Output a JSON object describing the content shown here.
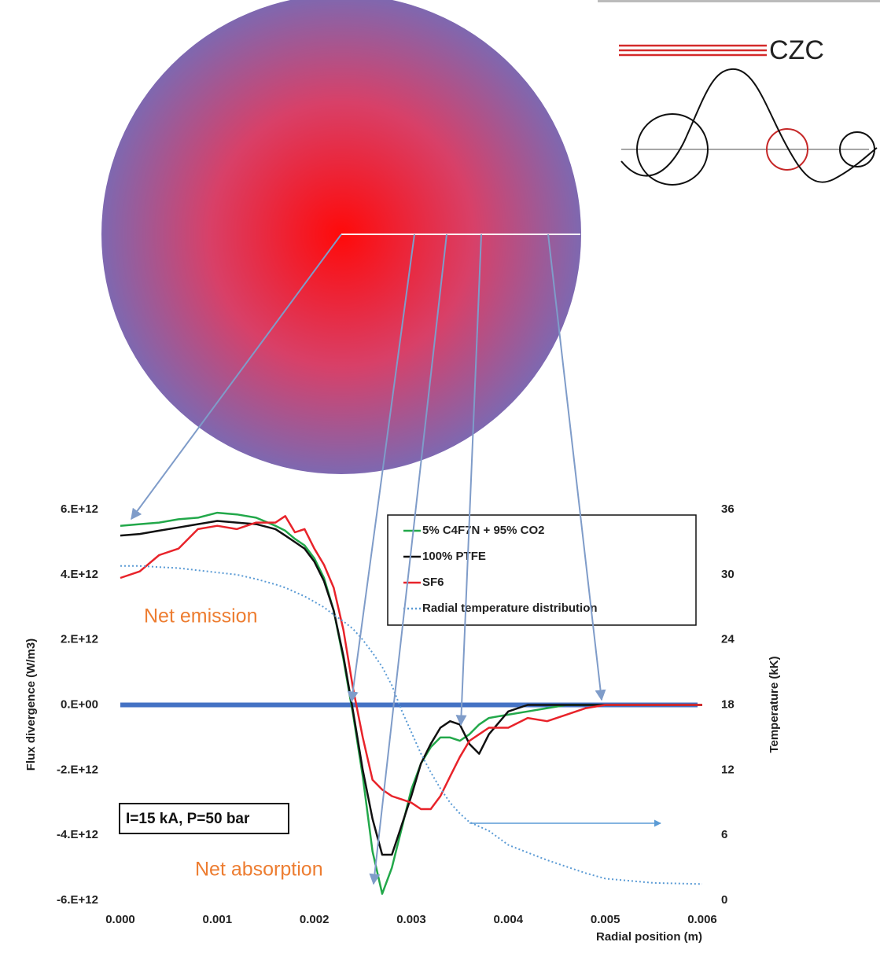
{
  "chart_data": {
    "type": "line",
    "x": [
      0,
      0.0002,
      0.0004,
      0.0006,
      0.0008,
      0.001,
      0.0012,
      0.0014,
      0.0016,
      0.0017,
      0.0018,
      0.0019,
      0.002,
      0.0021,
      0.0022,
      0.0023,
      0.0024,
      0.0025,
      0.0026,
      0.0027,
      0.0028,
      0.0029,
      0.003,
      0.0031,
      0.0032,
      0.0033,
      0.0034,
      0.0035,
      0.0036,
      0.0037,
      0.0038,
      0.004,
      0.0042,
      0.0044,
      0.0046,
      0.0048,
      0.005,
      0.0055,
      0.006
    ],
    "series": [
      {
        "name": "5% C4F7N + 95% CO2",
        "color": "#22a84a",
        "values": [
          5500000000000.0,
          5550000000000.0,
          5600000000000.0,
          5700000000000.0,
          5750000000000.0,
          5900000000000.0,
          5850000000000.0,
          5750000000000.0,
          5500000000000.0,
          5350000000000.0,
          5100000000000.0,
          4900000000000.0,
          4500000000000.0,
          3900000000000.0,
          2900000000000.0,
          1400000000000.0,
          -300000000000.0,
          -2200000000000.0,
          -4500000000000.0,
          -5800000000000.0,
          -5000000000000.0,
          -3800000000000.0,
          -2600000000000.0,
          -1800000000000.0,
          -1300000000000.0,
          -1000000000000.0,
          -1000000000000.0,
          -1100000000000.0,
          -900000000000.0,
          -600000000000.0,
          -400000000000.0,
          -300000000000.0,
          -200000000000.0,
          -100000000000.0,
          0,
          0,
          0,
          0,
          0
        ]
      },
      {
        "name": "100% PTFE",
        "color": "#111111",
        "values": [
          5200000000000.0,
          5250000000000.0,
          5350000000000.0,
          5450000000000.0,
          5550000000000.0,
          5650000000000.0,
          5600000000000.0,
          5550000000000.0,
          5400000000000.0,
          5200000000000.0,
          5000000000000.0,
          4800000000000.0,
          4400000000000.0,
          3800000000000.0,
          2900000000000.0,
          1500000000000.0,
          -200000000000.0,
          -2000000000000.0,
          -3500000000000.0,
          -4600000000000.0,
          -4600000000000.0,
          -3700000000000.0,
          -2800000000000.0,
          -1800000000000.0,
          -1200000000000.0,
          -700000000000.0,
          -500000000000.0,
          -600000000000.0,
          -1200000000000.0,
          -1500000000000.0,
          -900000000000.0,
          -200000000000.0,
          0,
          0,
          0,
          0,
          0,
          0,
          0
        ]
      },
      {
        "name": "SF6",
        "color": "#e8232a",
        "values": [
          3900000000000.0,
          4100000000000.0,
          4600000000000.0,
          4800000000000.0,
          5400000000000.0,
          5500000000000.0,
          5400000000000.0,
          5600000000000.0,
          5600000000000.0,
          5800000000000.0,
          5300000000000.0,
          5400000000000.0,
          4800000000000.0,
          4300000000000.0,
          3600000000000.0,
          2300000000000.0,
          500000000000.0,
          -1000000000000.0,
          -2300000000000.0,
          -2600000000000.0,
          -2800000000000.0,
          -2900000000000.0,
          -3000000000000.0,
          -3200000000000.0,
          -3200000000000.0,
          -2800000000000.0,
          -2200000000000.0,
          -1600000000000.0,
          -1100000000000.0,
          -900000000000.0,
          -700000000000.0,
          -700000000000.0,
          -400000000000.0,
          -500000000000.0,
          -300000000000.0,
          -100000000000.0,
          0,
          0,
          0
        ]
      },
      {
        "name": "Radial temperature distribution",
        "color": "#5b9bd5",
        "axis": "y2",
        "dotted": true,
        "values": [
          30.8,
          30.8,
          30.7,
          30.6,
          30.4,
          30.2,
          30,
          29.6,
          29.1,
          28.8,
          28.4,
          28,
          27.5,
          27,
          26.3,
          25.7,
          25,
          24,
          22.8,
          21.5,
          19.8,
          17.5,
          15.5,
          13.5,
          11.8,
          10.3,
          9,
          8,
          7.2,
          6.8,
          6.4,
          5.1,
          4.4,
          3.7,
          3.1,
          2.5,
          2.0,
          1.6,
          1.5
        ]
      }
    ],
    "xlim": [
      0,
      0.006
    ],
    "xticks": [
      {
        "value": 0,
        "label": "0.000"
      },
      {
        "value": 0.001,
        "label": "0.001"
      },
      {
        "value": 0.002,
        "label": "0.002"
      },
      {
        "value": 0.003,
        "label": "0.003"
      },
      {
        "value": 0.004,
        "label": "0.004"
      },
      {
        "value": 0.005,
        "label": "0.005"
      },
      {
        "value": 0.006,
        "label": "0.006"
      }
    ],
    "ylim": [
      -6000000000000.0,
      6000000000000.0
    ],
    "yticks": [
      {
        "value": -6000000000000.0,
        "label": "-6.E+12"
      },
      {
        "value": -4000000000000.0,
        "label": "-4.E+12"
      },
      {
        "value": -2000000000000.0,
        "label": "-2.E+12"
      },
      {
        "value": 0,
        "label": "0.E+00"
      },
      {
        "value": 2000000000000.0,
        "label": "2.E+12"
      },
      {
        "value": 4000000000000.0,
        "label": "4.E+12"
      },
      {
        "value": 6000000000000.0,
        "label": "6.E+12"
      }
    ],
    "y2lim": [
      0,
      36
    ],
    "y2ticks": [
      0,
      6,
      12,
      18,
      24,
      30,
      36
    ],
    "xlabel": "Radial position (m)",
    "ylabel": "Flux divergence (W/m3)",
    "y2label": "Temperature (kK)",
    "annotations": [
      "Net emission",
      "Net absorption",
      "I=15 kA, P=50 bar"
    ],
    "logo": "CZC"
  }
}
